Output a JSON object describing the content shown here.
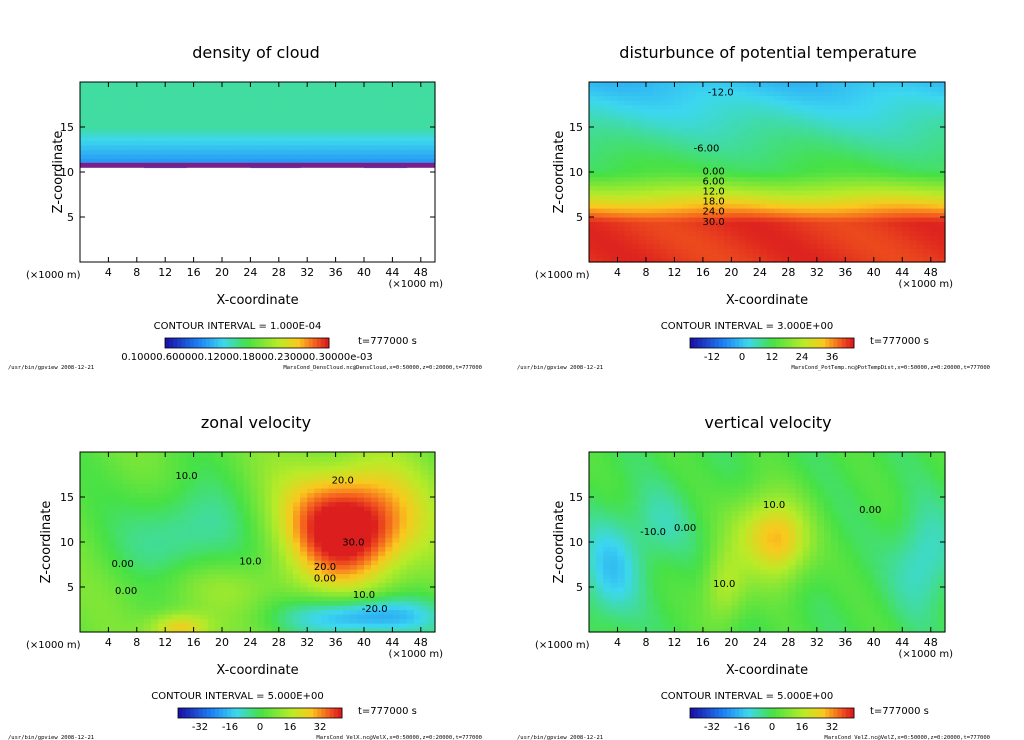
{
  "chart_data": [
    {
      "id": "cloud",
      "type": "heatmap",
      "title": "density of cloud",
      "xlabel": "X-coordinate",
      "ylabel": "Z-coordinate",
      "unit_x": "(×1000 m)",
      "unit_y": "(×1000 m)",
      "xlim": [
        0,
        50
      ],
      "ylim": [
        0,
        20
      ],
      "xticks": [
        4,
        8,
        12,
        16,
        20,
        24,
        28,
        32,
        36,
        40,
        44,
        48
      ],
      "yticks": [
        5,
        10,
        15
      ],
      "contour_interval": "CONTOUR INTERVAL = 1.000E-04",
      "time": "t=777000 s",
      "colorbar_labels": "0.10000.600000.12000.18000.230000.30000e-03",
      "footer_left": "/usr/bin/gpview   2008-12-21",
      "footer_right": "MarsCond_DensCloud.nc@DensCloud,x=0:50000,z=0:20000,t=777000",
      "cloud_base_z": 10.8,
      "contour_labels": []
    },
    {
      "id": "ptemp",
      "type": "heatmap",
      "title": "disturbunce of potential temperature",
      "xlabel": "X-coordinate",
      "ylabel": "Z-coordinate",
      "unit_x": "(×1000 m)",
      "unit_y": "(×1000 m)",
      "xlim": [
        0,
        50
      ],
      "ylim": [
        0,
        20
      ],
      "xticks": [
        4,
        8,
        12,
        16,
        20,
        24,
        28,
        32,
        36,
        40,
        44,
        48
      ],
      "yticks": [
        5,
        10,
        15
      ],
      "contour_interval": "CONTOUR INTERVAL = 3.000E+00",
      "time": "t=777000 s",
      "colorbar_ticks": [
        "-12",
        "0",
        "12",
        "24",
        "36"
      ],
      "footer_left": "/usr/bin/gpview   2008-12-21",
      "footer_right": "MarsCond_PotTemp.nc@PotTempDist,x=0:50000,z=0:20000,t=777000",
      "contour_labels": [
        {
          "text": "-12.0",
          "x": 18.5,
          "z": 18.5
        },
        {
          "text": "-6.00",
          "x": 16.5,
          "z": 12.3
        },
        {
          "text": "0.00",
          "x": 17.5,
          "z": 9.7
        },
        {
          "text": "6.00",
          "x": 17.5,
          "z": 8.6
        },
        {
          "text": "12.0",
          "x": 17.5,
          "z": 7.5
        },
        {
          "text": "18.0",
          "x": 17.5,
          "z": 6.4
        },
        {
          "text": "24.0",
          "x": 17.5,
          "z": 5.3
        },
        {
          "text": "30.0",
          "x": 17.5,
          "z": 4.1
        }
      ]
    },
    {
      "id": "zonal",
      "type": "heatmap",
      "title": "zonal velocity",
      "xlabel": "X-coordinate",
      "ylabel": "Z-coordinate",
      "unit_x": "(×1000 m)",
      "unit_y": "(×1000 m)",
      "xlim": [
        0,
        50
      ],
      "ylim": [
        0,
        20
      ],
      "xticks": [
        4,
        8,
        12,
        16,
        20,
        24,
        28,
        32,
        36,
        40,
        44,
        48
      ],
      "yticks": [
        5,
        10,
        15
      ],
      "contour_interval": "CONTOUR INTERVAL = 5.000E+00",
      "time": "t=777000 s",
      "colorbar_ticks": [
        "-32",
        "-16",
        "0",
        "16",
        "32"
      ],
      "footer_left": "/usr/bin/gpview   2008-12-21",
      "footer_right": "MarsCond_VelX.nc@VelX,x=0:50000,z=0:20000,t=777000",
      "contour_labels": [
        {
          "text": "10.0",
          "x": 15,
          "z": 17
        },
        {
          "text": "20.0",
          "x": 37,
          "z": 16.5
        },
        {
          "text": "30.0",
          "x": 38.5,
          "z": 9.6
        },
        {
          "text": "20.0",
          "x": 34.5,
          "z": 6.9
        },
        {
          "text": "10.0",
          "x": 24,
          "z": 7.5
        },
        {
          "text": "0.00",
          "x": 34.5,
          "z": 5.6
        },
        {
          "text": "0.00",
          "x": 6,
          "z": 7.2
        },
        {
          "text": "0.00",
          "x": 6.5,
          "z": 4.2
        },
        {
          "text": "10.0",
          "x": 40,
          "z": 3.8
        },
        {
          "text": "-20.0",
          "x": 41.5,
          "z": 2.2
        }
      ]
    },
    {
      "id": "vert",
      "type": "heatmap",
      "title": "vertical velocity",
      "xlabel": "X-coordinate",
      "ylabel": "Z-coordinate",
      "unit_x": "(×1000 m)",
      "unit_y": "(×1000 m)",
      "xlim": [
        0,
        50
      ],
      "ylim": [
        0,
        20
      ],
      "xticks": [
        4,
        8,
        12,
        16,
        20,
        24,
        28,
        32,
        36,
        40,
        44,
        48
      ],
      "yticks": [
        5,
        10,
        15
      ],
      "contour_interval": "CONTOUR INTERVAL = 5.000E+00",
      "time": "t=777000 s",
      "colorbar_ticks": [
        "-32",
        "-16",
        "0",
        "16",
        "32"
      ],
      "footer_left": "/usr/bin/gpview   2008-12-21",
      "footer_right": "MarsCond_VelZ.nc@VelZ,x=0:50000,z=0:20000,t=777000",
      "contour_labels": [
        {
          "text": "10.0",
          "x": 26,
          "z": 13.8
        },
        {
          "text": "0.00",
          "x": 13.5,
          "z": 11.2
        },
        {
          "text": "-10.0",
          "x": 9,
          "z": 10.8
        },
        {
          "text": "10.0",
          "x": 19,
          "z": 5
        },
        {
          "text": "0.00",
          "x": 39.5,
          "z": 13.2
        }
      ]
    }
  ]
}
